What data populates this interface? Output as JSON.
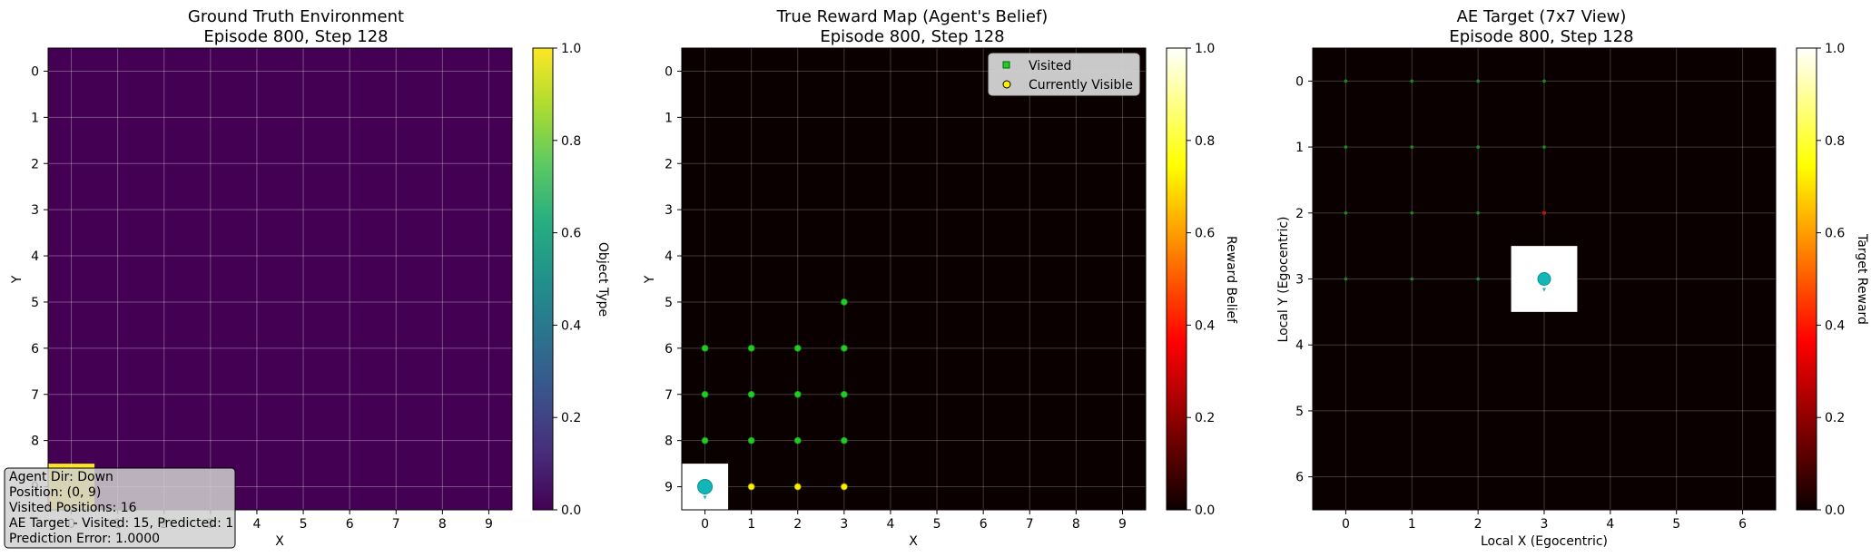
{
  "panels": [
    {
      "title_line1": "Ground Truth Environment",
      "title_line2": "Episode 800, Step 128",
      "xlabel": "X",
      "ylabel": "Y",
      "colorbar_label": "Object Type",
      "colorbar_ticks": [
        "0.0",
        "0.2",
        "0.4",
        "0.6",
        "0.8",
        "1.0"
      ],
      "x_ticks": [
        "0",
        "1",
        "2",
        "3",
        "4",
        "5",
        "6",
        "7",
        "8",
        "9"
      ],
      "y_ticks": [
        "0",
        "1",
        "2",
        "3",
        "4",
        "5",
        "6",
        "7",
        "8",
        "9"
      ]
    },
    {
      "title_line1": "True Reward Map (Agent's Belief)",
      "title_line2": "Episode 800, Step 128",
      "xlabel": "X",
      "ylabel": "Y",
      "colorbar_label": "Reward Belief",
      "colorbar_ticks": [
        "0.0",
        "0.2",
        "0.4",
        "0.6",
        "0.8",
        "1.0"
      ],
      "x_ticks": [
        "0",
        "1",
        "2",
        "3",
        "4",
        "5",
        "6",
        "7",
        "8",
        "9"
      ],
      "y_ticks": [
        "0",
        "1",
        "2",
        "3",
        "4",
        "5",
        "6",
        "7",
        "8",
        "9"
      ],
      "legend": [
        "Visited",
        "Currently Visible"
      ]
    },
    {
      "title_line1": "AE Target (7x7 View)",
      "title_line2": "Episode 800, Step 128",
      "xlabel": "Local X (Egocentric)",
      "ylabel": "Local Y (Egocentric)",
      "colorbar_label": "Target Reward",
      "colorbar_ticks": [
        "0.0",
        "0.2",
        "0.4",
        "0.6",
        "0.8",
        "1.0"
      ],
      "x_ticks": [
        "0",
        "1",
        "2",
        "3",
        "4",
        "5",
        "6"
      ],
      "y_ticks": [
        "0",
        "1",
        "2",
        "3",
        "4",
        "5",
        "6"
      ]
    }
  ],
  "info_box": {
    "line1": "Agent Dir: Down",
    "line2": "Position: (0, 9)",
    "line3": "Visited Positions: 16",
    "line4": "AE Target - Visited: 15, Predicted: 1",
    "line5": "Prediction Error: 1.0000"
  },
  "chart_data": [
    {
      "type": "heatmap",
      "title": "Ground Truth Environment\nEpisode 800, Step 128",
      "xlabel": "X",
      "ylabel": "Y",
      "grid_size": [
        10,
        10
      ],
      "xlim": [
        -0.5,
        9.5
      ],
      "ylim": [
        9.5,
        -0.5
      ],
      "clim": [
        0.0,
        1.0
      ],
      "colormap": "viridis",
      "colorbar_label": "Object Type",
      "cells_nonzero": [
        {
          "x": 0,
          "y": 9,
          "value": 1.0
        }
      ],
      "default_value": 0.0,
      "grid": true
    },
    {
      "type": "heatmap",
      "title": "True Reward Map (Agent's Belief)\nEpisode 800, Step 128",
      "xlabel": "X",
      "ylabel": "Y",
      "grid_size": [
        10,
        10
      ],
      "xlim": [
        -0.5,
        9.5
      ],
      "ylim": [
        9.5,
        -0.5
      ],
      "clim": [
        0.0,
        1.0
      ],
      "colormap": "hot",
      "colorbar_label": "Reward Belief",
      "cells_nonzero": [
        {
          "x": 0,
          "y": 9,
          "value": 1.0
        }
      ],
      "default_value": 0.0,
      "agent_position": {
        "x": 0,
        "y": 9
      },
      "visited": [
        {
          "x": 3,
          "y": 5
        },
        {
          "x": 0,
          "y": 6
        },
        {
          "x": 1,
          "y": 6
        },
        {
          "x": 2,
          "y": 6
        },
        {
          "x": 3,
          "y": 6
        },
        {
          "x": 0,
          "y": 7
        },
        {
          "x": 1,
          "y": 7
        },
        {
          "x": 2,
          "y": 7
        },
        {
          "x": 3,
          "y": 7
        },
        {
          "x": 0,
          "y": 8
        },
        {
          "x": 1,
          "y": 8
        },
        {
          "x": 2,
          "y": 8
        },
        {
          "x": 3,
          "y": 8
        }
      ],
      "currently_visible": [
        {
          "x": 1,
          "y": 9
        },
        {
          "x": 2,
          "y": 9
        },
        {
          "x": 3,
          "y": 9
        }
      ],
      "legend_placement": "top-right",
      "grid": true
    },
    {
      "type": "heatmap",
      "title": "AE Target (7x7 View)\nEpisode 800, Step 128",
      "xlabel": "Local X (Egocentric)",
      "ylabel": "Local Y (Egocentric)",
      "grid_size": [
        7,
        7
      ],
      "xlim": [
        -0.5,
        6.5
      ],
      "ylim": [
        6.5,
        -0.5
      ],
      "clim": [
        0.0,
        1.0
      ],
      "colormap": "hot",
      "colorbar_label": "Target Reward",
      "cells_nonzero": [
        {
          "x": 3,
          "y": 3,
          "value": 1.0
        }
      ],
      "default_value": 0.0,
      "agent_position": {
        "x": 3,
        "y": 3
      },
      "green_markers": [
        {
          "x": 0,
          "y": 0
        },
        {
          "x": 1,
          "y": 0
        },
        {
          "x": 2,
          "y": 0
        },
        {
          "x": 3,
          "y": 0
        },
        {
          "x": 0,
          "y": 1
        },
        {
          "x": 1,
          "y": 1
        },
        {
          "x": 2,
          "y": 1
        },
        {
          "x": 3,
          "y": 1
        },
        {
          "x": 0,
          "y": 2
        },
        {
          "x": 1,
          "y": 2
        },
        {
          "x": 2,
          "y": 2
        },
        {
          "x": 0,
          "y": 3
        },
        {
          "x": 1,
          "y": 3
        },
        {
          "x": 2,
          "y": 3
        }
      ],
      "red_markers": [
        {
          "x": 3,
          "y": 2
        }
      ],
      "grid": true
    }
  ]
}
